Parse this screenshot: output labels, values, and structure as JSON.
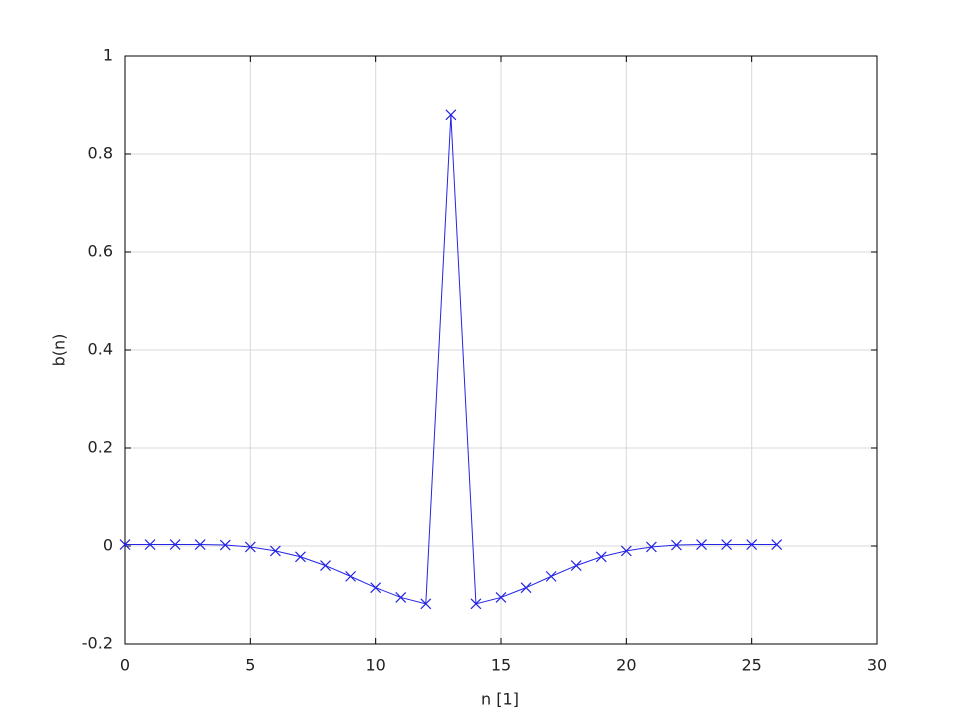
{
  "chart_data": {
    "type": "line",
    "xlabel": "n [1]",
    "ylabel": "b(n)",
    "x": [
      0,
      1,
      2,
      3,
      4,
      5,
      6,
      7,
      8,
      9,
      10,
      11,
      12,
      13,
      14,
      15,
      16,
      17,
      18,
      19,
      20,
      21,
      22,
      23,
      24,
      25,
      26
    ],
    "series": [
      {
        "color": "#2424e6",
        "marker": "x",
        "values": [
          0.003,
          0.003,
          0.003,
          0.003,
          0.002,
          -0.002,
          -0.01,
          -0.022,
          -0.04,
          -0.062,
          -0.085,
          -0.105,
          -0.118,
          0.88,
          -0.118,
          -0.105,
          -0.085,
          -0.062,
          -0.04,
          -0.022,
          -0.01,
          -0.002,
          0.002,
          0.003,
          0.003,
          0.003,
          0.003
        ]
      }
    ],
    "xlim": [
      0,
      30
    ],
    "xticks": [
      0,
      5,
      10,
      15,
      20,
      25,
      30
    ],
    "ylim": [
      -0.2,
      1
    ],
    "yticks": [
      -0.2,
      0,
      0.2,
      0.4,
      0.6,
      0.8,
      1
    ],
    "grid": true
  }
}
